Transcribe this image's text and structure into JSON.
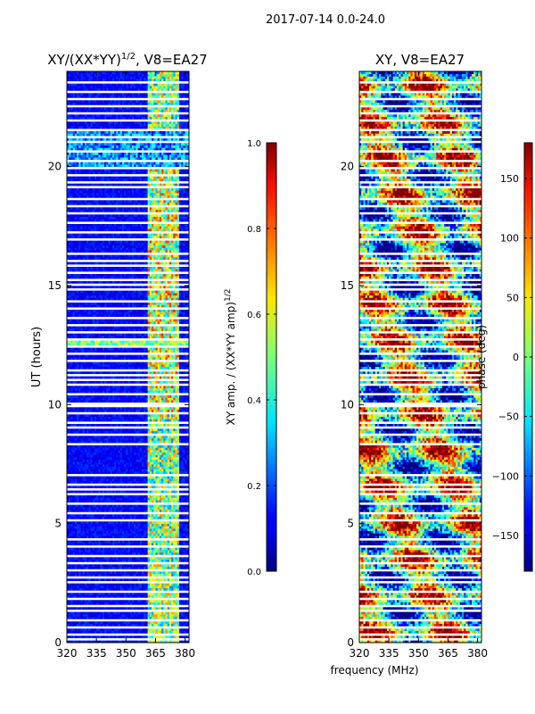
{
  "suptitle": "2017-07-14 0.0-24.0",
  "xlabel_shared": "frequency (MHz)",
  "chart_data": [
    {
      "type": "heatmap",
      "title_prefix": "XY/(XX*YY)",
      "title_exp": "1/2",
      "title_suffix": ", V8=EA27",
      "xlabel": "",
      "ylabel": "UT (hours)",
      "xlim": [
        320,
        382
      ],
      "ylim": [
        0,
        24
      ],
      "xticks": [
        "320",
        "335",
        "350",
        "365",
        "380"
      ],
      "xtick_values": [
        320,
        335,
        350,
        365,
        380
      ],
      "yticks": [
        "0",
        "5",
        "10",
        "15",
        "20"
      ],
      "ytick_values": [
        0,
        5,
        10,
        15,
        20
      ],
      "colorbar": {
        "label": "XY amp. / (XX*YY amp)",
        "label_exp": "1/2",
        "range": [
          0.0,
          1.0
        ],
        "ticks": [
          "0.0",
          "0.2",
          "0.4",
          "0.6",
          "0.8",
          "1.0"
        ],
        "tick_values": [
          0.0,
          0.2,
          0.4,
          0.6,
          0.8,
          1.0
        ]
      },
      "colormap": "jet"
    },
    {
      "type": "heatmap",
      "title": "XY, V8=EA27",
      "xlabel": "frequency (MHz)",
      "ylabel": "",
      "xlim": [
        320,
        382
      ],
      "ylim": [
        0,
        24
      ],
      "xticks": [
        "320",
        "335",
        "350",
        "365",
        "380"
      ],
      "xtick_values": [
        320,
        335,
        350,
        365,
        380
      ],
      "yticks": [
        "0",
        "5",
        "10",
        "15",
        "20"
      ],
      "ytick_values": [
        0,
        5,
        10,
        15,
        20
      ],
      "colorbar": {
        "label": "phase (deg)",
        "range": [
          -180,
          180
        ],
        "ticks": [
          "−150",
          "−100",
          "−50",
          "0",
          "50",
          "100",
          "150"
        ],
        "tick_values": [
          -150,
          -100,
          -50,
          0,
          50,
          100,
          150
        ]
      },
      "colormap": "jet"
    }
  ]
}
